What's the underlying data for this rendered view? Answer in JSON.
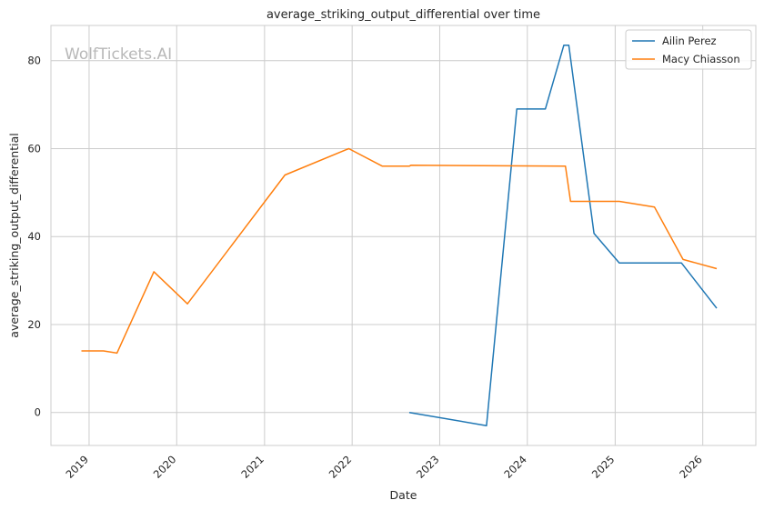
{
  "chart_data": {
    "type": "line",
    "title": "average_striking_output_differential over time",
    "xlabel": "Date",
    "ylabel": "average_striking_output_differential",
    "watermark": "WolfTickets.AI",
    "x_ticks": [
      "2019",
      "2020",
      "2021",
      "2022",
      "2023",
      "2024",
      "2025",
      "2026"
    ],
    "y_ticks": [
      0,
      20,
      40,
      60,
      80
    ],
    "xlim": [
      "2018-07-26",
      "2026-08-10"
    ],
    "ylim": [
      -7.5,
      88
    ],
    "grid": true,
    "legend_position": "top-right",
    "series": [
      {
        "name": "Ailin Perez",
        "color": "#1f77b4",
        "points": [
          {
            "x": "2022-08-27",
            "y": 0
          },
          {
            "x": "2023-07-15",
            "y": -3
          },
          {
            "x": "2023-11-18",
            "y": 69
          },
          {
            "x": "2024-03-16",
            "y": 69
          },
          {
            "x": "2024-06-01",
            "y": 83.5
          },
          {
            "x": "2024-06-22",
            "y": 83.5
          },
          {
            "x": "2024-10-05",
            "y": 40.7
          },
          {
            "x": "2025-01-18",
            "y": 34
          },
          {
            "x": "2025-10-04",
            "y": 34
          },
          {
            "x": "2026-02-28",
            "y": 23.7
          }
        ]
      },
      {
        "name": "Macy Chiasson",
        "color": "#ff7f0e",
        "points": [
          {
            "x": "2018-11-30",
            "y": 14
          },
          {
            "x": "2019-03-02",
            "y": 14
          },
          {
            "x": "2019-04-27",
            "y": 13.5
          },
          {
            "x": "2019-09-28",
            "y": 32
          },
          {
            "x": "2020-02-15",
            "y": 24.7
          },
          {
            "x": "2021-03-27",
            "y": 54
          },
          {
            "x": "2021-12-18",
            "y": 60
          },
          {
            "x": "2022-05-07",
            "y": 56
          },
          {
            "x": "2022-08-27",
            "y": 56
          },
          {
            "x": "2022-09-03",
            "y": 56.2
          },
          {
            "x": "2024-06-08",
            "y": 56
          },
          {
            "x": "2024-06-29",
            "y": 48
          },
          {
            "x": "2025-01-18",
            "y": 48
          },
          {
            "x": "2025-06-14",
            "y": 46.7
          },
          {
            "x": "2025-10-11",
            "y": 34.8
          },
          {
            "x": "2026-02-28",
            "y": 32.7
          }
        ]
      }
    ]
  }
}
